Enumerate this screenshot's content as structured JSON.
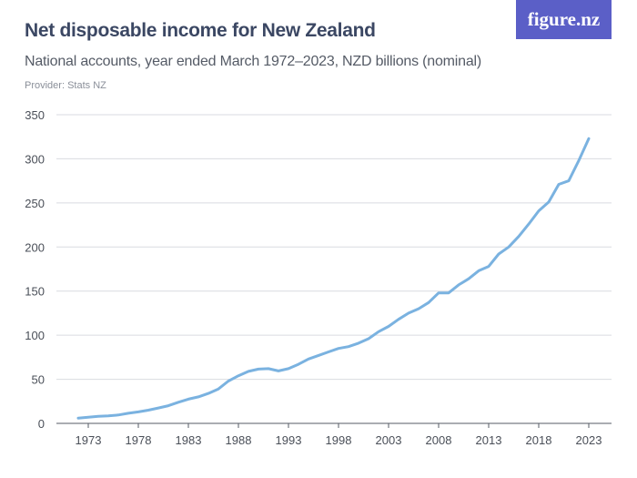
{
  "header": {
    "title": "Net disposable income for New Zealand",
    "subtitle": "National accounts, year ended March 1972–2023, NZD billions (nominal)",
    "provider": "Provider: Stats NZ",
    "logo_text": "figure.nz"
  },
  "colors": {
    "line": "#7ab2e0",
    "logo_bg": "#5b5fc7",
    "grid": "#d9dbe0"
  },
  "chart_data": {
    "type": "line",
    "title": "Net disposable income for New Zealand",
    "subtitle": "National accounts, year ended March 1972–2023, NZD billions (nominal)",
    "xlabel": "",
    "ylabel": "",
    "ylim": [
      0,
      350
    ],
    "xlim": [
      1972,
      2023
    ],
    "y_ticks": [
      0,
      50,
      100,
      150,
      200,
      250,
      300,
      350
    ],
    "x_ticks": [
      1973,
      1978,
      1983,
      1988,
      1993,
      1998,
      2003,
      2008,
      2013,
      2018,
      2023
    ],
    "grid": "horizontal",
    "legend": "none",
    "series": [
      {
        "x": [
          1972,
          1973,
          1974,
          1975,
          1976,
          1977,
          1978,
          1979,
          1980,
          1981,
          1982,
          1983,
          1984,
          1985,
          1986,
          1987,
          1988,
          1989,
          1990,
          1991,
          1992,
          1993,
          1994,
          1995,
          1996,
          1997,
          1998,
          1999,
          2000,
          2001,
          2002,
          2003,
          2004,
          2005,
          2006,
          2007,
          2008,
          2009,
          2010,
          2011,
          2012,
          2013,
          2014,
          2015,
          2016,
          2017,
          2018,
          2019,
          2020,
          2021,
          2022,
          2023
        ],
        "values": [
          6,
          7,
          8,
          8.5,
          9.5,
          11.5,
          13,
          15,
          17.5,
          20,
          24,
          27.5,
          30,
          34,
          39,
          48,
          54,
          59,
          61.5,
          62,
          59.5,
          62,
          67,
          73,
          77,
          81,
          85,
          87,
          91,
          96,
          104,
          110,
          118,
          125,
          130,
          137,
          148,
          148,
          157,
          164,
          173,
          178,
          192,
          200,
          212,
          226,
          241,
          251,
          271,
          275,
          298,
          323
        ]
      }
    ]
  }
}
